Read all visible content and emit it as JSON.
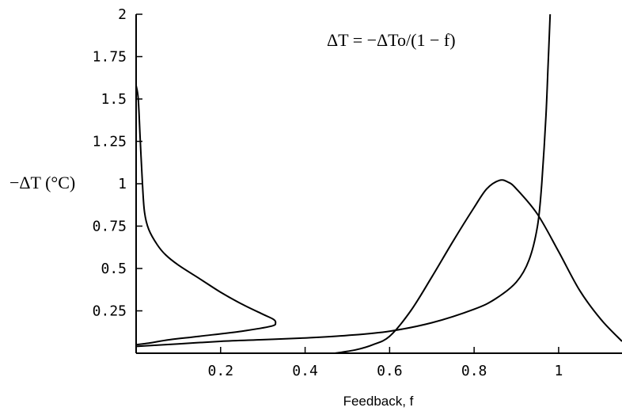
{
  "chart_data": {
    "type": "line",
    "xlabel": "Feedback, f",
    "ylabel": "−ΔT (°C)",
    "annotation": "ΔT = −ΔTo/(1 − f)",
    "xlim": [
      0,
      1.15
    ],
    "ylim": [
      0,
      2
    ],
    "x_ticks": [
      {
        "value": 0.2,
        "label": "0.2"
      },
      {
        "value": 0.4,
        "label": "0.4"
      },
      {
        "value": 0.6,
        "label": "0.6"
      },
      {
        "value": 0.8,
        "label": "0.8"
      },
      {
        "value": 1.0,
        "label": "1"
      }
    ],
    "y_ticks": [
      {
        "value": 0.25,
        "label": "0.25"
      },
      {
        "value": 0.5,
        "label": "0.5"
      },
      {
        "value": 0.75,
        "label": "0.75"
      },
      {
        "value": 1.0,
        "label": "1"
      },
      {
        "value": 1.25,
        "label": "1.25"
      },
      {
        "value": 1.5,
        "label": "1.5"
      },
      {
        "value": 1.75,
        "label": "1.75"
      },
      {
        "value": 2.0,
        "label": "2"
      }
    ],
    "series": [
      {
        "points": [
          [
            0.0,
            1.58
          ],
          [
            0.005,
            1.5
          ],
          [
            0.01,
            1.25
          ],
          [
            0.015,
            1.0
          ],
          [
            0.02,
            0.83
          ],
          [
            0.03,
            0.73
          ],
          [
            0.05,
            0.64
          ],
          [
            0.07,
            0.58
          ],
          [
            0.1,
            0.52
          ],
          [
            0.15,
            0.44
          ],
          [
            0.2,
            0.36
          ],
          [
            0.25,
            0.29
          ],
          [
            0.3,
            0.23
          ],
          [
            0.325,
            0.2
          ],
          [
            0.33,
            0.18
          ],
          [
            0.32,
            0.16
          ],
          [
            0.25,
            0.13
          ],
          [
            0.15,
            0.1
          ],
          [
            0.08,
            0.08
          ],
          [
            0.03,
            0.06
          ],
          [
            0.0,
            0.05
          ]
        ]
      },
      {
        "points": [
          [
            0.0,
            0.04
          ],
          [
            0.1,
            0.055
          ],
          [
            0.2,
            0.07
          ],
          [
            0.3,
            0.08
          ],
          [
            0.4,
            0.09
          ],
          [
            0.5,
            0.105
          ],
          [
            0.6,
            0.13
          ],
          [
            0.7,
            0.18
          ],
          [
            0.8,
            0.26
          ],
          [
            0.85,
            0.32
          ],
          [
            0.9,
            0.42
          ],
          [
            0.93,
            0.55
          ],
          [
            0.95,
            0.75
          ],
          [
            0.96,
            1.0
          ],
          [
            0.97,
            1.4
          ],
          [
            0.975,
            1.7
          ],
          [
            0.98,
            2.0
          ]
        ]
      },
      {
        "points": [
          [
            0.47,
            0.0
          ],
          [
            0.52,
            0.02
          ],
          [
            0.56,
            0.05
          ],
          [
            0.6,
            0.1
          ],
          [
            0.65,
            0.25
          ],
          [
            0.7,
            0.45
          ],
          [
            0.75,
            0.66
          ],
          [
            0.8,
            0.86
          ],
          [
            0.83,
            0.97
          ],
          [
            0.86,
            1.02
          ],
          [
            0.88,
            1.01
          ],
          [
            0.9,
            0.97
          ],
          [
            0.95,
            0.82
          ],
          [
            1.0,
            0.6
          ],
          [
            1.05,
            0.37
          ],
          [
            1.1,
            0.2
          ],
          [
            1.15,
            0.07
          ]
        ]
      }
    ]
  }
}
